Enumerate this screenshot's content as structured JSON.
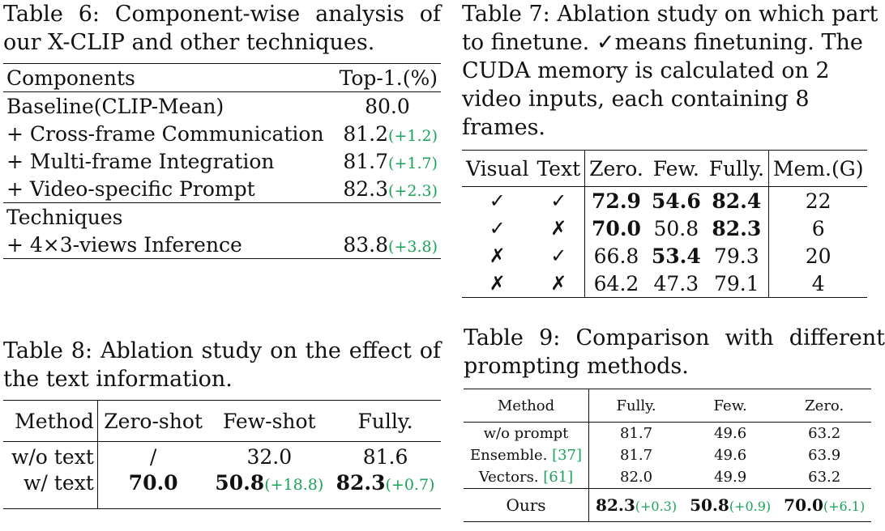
{
  "table6": {
    "caption": "Table 6: Component-wise analysis of our X-CLIP and other techniques.",
    "header": {
      "col1": "Components",
      "col2": "Top-1.(%)"
    },
    "group1": [
      {
        "label": "Baseline(CLIP-Mean)",
        "value": "80.0",
        "delta": ""
      },
      {
        "label": "+ Cross-frame Communication",
        "value": "81.2",
        "delta": "(+1.2)"
      },
      {
        "label": "+ Multi-frame Integration",
        "value": "81.7",
        "delta": "(+1.7)"
      },
      {
        "label": "+ Video-specific Prompt",
        "value": "82.3",
        "delta": "(+2.3)"
      }
    ],
    "group2_title": "Techniques",
    "group2": [
      {
        "label": "+ 4×3-views Inference",
        "value": "83.8",
        "delta": "(+3.8)"
      }
    ]
  },
  "table7": {
    "caption": "Table 7: Ablation study on which part to finetune. ✓means finetuning. The CUDA memory is calculated on 2 video inputs, each containing 8 frames.",
    "headers": [
      "Visual",
      "Text",
      "Zero.",
      "Few.",
      "Fully.",
      "Mem.(G)"
    ],
    "rows": [
      {
        "visual": "✓",
        "text": "✓",
        "zero": "72.9",
        "few": "54.6",
        "fully": "82.4",
        "mem": "22"
      },
      {
        "visual": "✓",
        "text": "✗",
        "zero": "70.0",
        "few": "50.8",
        "fully": "82.3",
        "mem": "6"
      },
      {
        "visual": "✗",
        "text": "✓",
        "zero": "66.8",
        "few": "53.4",
        "fully": "79.3",
        "mem": "20"
      },
      {
        "visual": "✗",
        "text": "✗",
        "zero": "64.2",
        "few": "47.3",
        "fully": "79.1",
        "mem": "4"
      }
    ]
  },
  "table8": {
    "caption": "Table 8: Ablation study on the effect of the text information.",
    "headers": [
      "Method",
      "Zero-shot",
      "Few-shot",
      "Fully."
    ],
    "rows": [
      {
        "method": "w/o text",
        "zero": "/",
        "few": "32.0",
        "few_delta": "",
        "fully": "81.6",
        "fully_delta": ""
      },
      {
        "method": "w/ text",
        "zero": "70.0",
        "few": "50.8",
        "few_delta": "(+18.8)",
        "fully": "82.3",
        "fully_delta": "(+0.7)"
      }
    ]
  },
  "table9": {
    "caption": "Table 9: Comparison with different prompting methods.",
    "headers": [
      "Method",
      "Fully.",
      "Few.",
      "Zero."
    ],
    "rows": [
      {
        "method": "w/o prompt",
        "ref": "",
        "fully": "81.7",
        "few": "49.6",
        "zero": "63.2"
      },
      {
        "method": "Ensemble. ",
        "ref": "[37]",
        "fully": "81.7",
        "few": "49.6",
        "zero": "63.9"
      },
      {
        "method": "Vectors. ",
        "ref": "[61]",
        "fully": "82.0",
        "few": "49.9",
        "zero": "63.2"
      }
    ],
    "ours": {
      "method": "Ours",
      "fully": "82.3",
      "fully_delta": "(+0.3)",
      "few": "50.8",
      "few_delta": "(+0.9)",
      "zero": "70.0",
      "zero_delta": "(+6.1)"
    }
  },
  "colors": {
    "delta_green": "#1aa35a",
    "text": "#111111"
  }
}
